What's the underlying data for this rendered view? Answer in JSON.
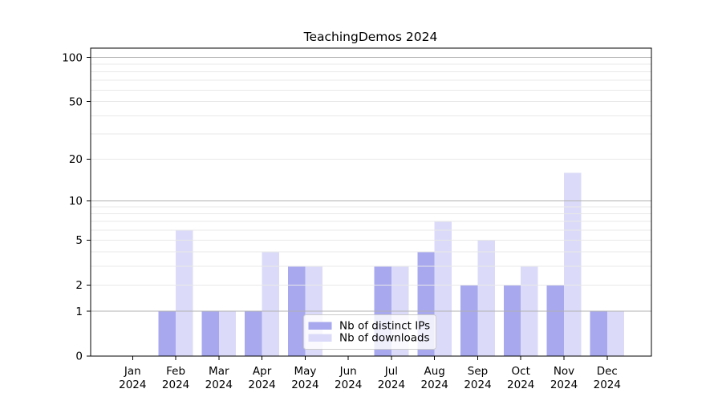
{
  "chart_data": {
    "type": "bar",
    "title": "TeachingDemos 2024",
    "categories": [
      "Jan",
      "Feb",
      "Mar",
      "Apr",
      "May",
      "Jun",
      "Jul",
      "Aug",
      "Sep",
      "Oct",
      "Nov",
      "Dec"
    ],
    "x_tick_year": "2024",
    "series": [
      {
        "name": "Nb of distinct IPs",
        "color": "#a8a8ef",
        "values": [
          0,
          1,
          1,
          1,
          3,
          0,
          3,
          4,
          2,
          2,
          2,
          1
        ]
      },
      {
        "name": "Nb of downloads",
        "color": "#dbdbf9",
        "values": [
          0,
          6,
          1,
          4,
          3,
          0,
          3,
          7,
          5,
          3,
          16,
          1
        ]
      }
    ],
    "y_scale": "log10(value+1)",
    "y_tick_values": [
      0,
      1,
      2,
      5,
      10,
      20,
      50,
      100
    ],
    "major_gridline_values": [
      1,
      10,
      100
    ],
    "minor_gridline_values": [
      2,
      3,
      4,
      5,
      6,
      7,
      8,
      9,
      20,
      30,
      40,
      50,
      60,
      70,
      80,
      90
    ],
    "ylim": [
      0,
      116
    ],
    "grid": true,
    "legend_position": "lower center"
  },
  "colors": {
    "major_grid": "#b0b0b0",
    "minor_grid": "#e8e8e8",
    "axis": "#000000",
    "legend_border": "#cccccc",
    "legend_background": "rgba(255,255,255,0.82)"
  }
}
